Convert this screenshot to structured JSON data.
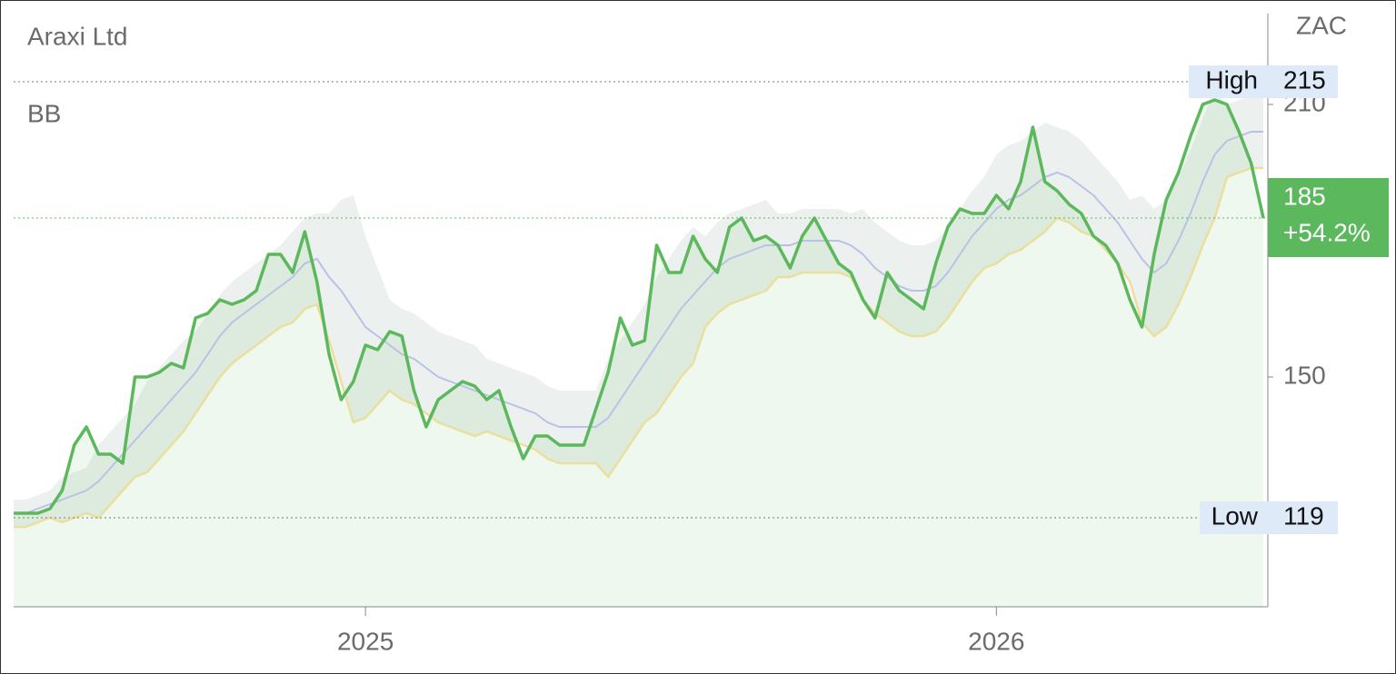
{
  "chart_data": {
    "type": "line",
    "title": "Araxi Ltd",
    "indicator": "BB",
    "currency": "ZAC",
    "categories": [
      null,
      null,
      null,
      null,
      null,
      null,
      null,
      null,
      null,
      null,
      null,
      null,
      null,
      null,
      null,
      null,
      null,
      null,
      null,
      null,
      null,
      null,
      null,
      null,
      null,
      null,
      null,
      null,
      null,
      "2025",
      null,
      null,
      null,
      null,
      null,
      null,
      null,
      null,
      null,
      null,
      null,
      null,
      null,
      null,
      null,
      null,
      null,
      null,
      null,
      null,
      null,
      null,
      null,
      null,
      null,
      null,
      null,
      null,
      null,
      null,
      null,
      null,
      null,
      null,
      null,
      null,
      null,
      null,
      null,
      null,
      null,
      null,
      null,
      null,
      null,
      null,
      null,
      null,
      null,
      null,
      null,
      "2026",
      null,
      null,
      null,
      null,
      null,
      null,
      null,
      null,
      null,
      null,
      null,
      null,
      null,
      null,
      null,
      null,
      null,
      null,
      null,
      null,
      null,
      null
    ],
    "price": {
      "color": "#5cb85c",
      "values": [
        120,
        120,
        120,
        121,
        125,
        135,
        139,
        133,
        133,
        131,
        150,
        150,
        151,
        153,
        152,
        163,
        164,
        167,
        166,
        167,
        169,
        177,
        177,
        173,
        182,
        171,
        155,
        145,
        149,
        157,
        156,
        160,
        159,
        147,
        139,
        145,
        147,
        149,
        148,
        145,
        147,
        139,
        132,
        137,
        137,
        135,
        135,
        135,
        143,
        151,
        163,
        157,
        158,
        179,
        173,
        173,
        181,
        176,
        173,
        183,
        185,
        180,
        181,
        179,
        174,
        181,
        185,
        180,
        175,
        173,
        167,
        163,
        173,
        169,
        167,
        165,
        175,
        183,
        187,
        186,
        186,
        190,
        187,
        193,
        205,
        193,
        191,
        188,
        186,
        181,
        179,
        175,
        167,
        161,
        177,
        189,
        195,
        203,
        210,
        211,
        210,
        204,
        197,
        185
      ]
    },
    "bands": {
      "upper_color": "#dde3e0",
      "middle_color": "#b9c2e6",
      "lower_color": "#eadf9c",
      "upper": [
        123,
        123,
        124,
        125,
        128,
        129,
        130,
        135,
        138,
        141,
        144,
        149,
        152,
        155,
        158,
        160,
        164,
        168,
        171,
        173,
        175,
        177,
        179,
        182,
        185,
        186,
        186,
        189,
        190,
        181,
        174,
        167,
        165,
        164,
        162,
        160,
        159,
        158,
        157,
        154,
        153,
        152,
        151,
        150,
        148,
        147,
        147,
        147,
        147,
        154,
        158,
        162,
        166,
        172,
        176,
        180,
        183,
        181,
        184,
        186,
        187,
        188,
        189,
        186,
        186,
        187,
        187,
        187,
        187,
        186,
        187,
        184,
        182,
        180,
        179,
        179,
        180,
        183,
        187,
        191,
        194,
        199,
        201,
        202,
        204,
        206,
        205,
        204,
        202,
        199,
        196,
        193,
        189,
        190,
        187,
        189,
        194,
        200,
        207,
        213,
        210,
        211,
        212,
        212
      ],
      "middle": [
        120,
        120,
        121,
        122,
        123,
        124,
        125,
        127,
        130,
        133,
        136,
        139,
        142,
        145,
        148,
        151,
        155,
        159,
        162,
        164,
        166,
        168,
        170,
        172,
        175,
        176,
        172,
        169,
        165,
        161,
        159,
        157,
        155,
        154,
        152,
        150,
        149,
        148,
        147,
        146,
        145,
        144,
        143,
        142,
        140,
        139,
        139,
        139,
        139,
        141,
        145,
        149,
        153,
        157,
        161,
        165,
        168,
        171,
        174,
        176,
        177,
        178,
        179,
        179,
        179,
        180,
        180,
        180,
        180,
        179,
        177,
        174,
        172,
        170,
        169,
        169,
        170,
        173,
        177,
        181,
        184,
        187,
        189,
        190,
        192,
        194,
        195,
        194,
        192,
        190,
        187,
        184,
        180,
        176,
        173,
        175,
        180,
        186,
        193,
        199,
        202,
        203,
        204,
        204
      ],
      "lower": [
        117,
        117,
        118,
        119,
        118,
        119,
        120,
        119,
        122,
        125,
        128,
        129,
        132,
        135,
        138,
        142,
        146,
        150,
        153,
        155,
        157,
        159,
        161,
        162,
        165,
        166,
        158,
        149,
        140,
        141,
        144,
        147,
        145,
        144,
        142,
        140,
        139,
        138,
        137,
        138,
        137,
        136,
        135,
        134,
        132,
        131,
        131,
        131,
        131,
        128,
        132,
        136,
        140,
        142,
        146,
        150,
        153,
        161,
        164,
        166,
        167,
        168,
        169,
        172,
        172,
        173,
        173,
        173,
        173,
        172,
        167,
        164,
        162,
        160,
        159,
        159,
        160,
        163,
        167,
        171,
        174,
        175,
        177,
        178,
        180,
        182,
        185,
        184,
        182,
        181,
        178,
        175,
        171,
        162,
        159,
        161,
        166,
        172,
        179,
        185,
        194,
        195,
        196,
        196
      ]
    },
    "high": {
      "label": "High",
      "value": 215
    },
    "low": {
      "label": "Low",
      "value": 119
    },
    "last": 185,
    "change": {
      "value": 54.2,
      "label": "+54.2%"
    },
    "ylim": [
      99.4,
      230
    ],
    "yticks": [
      150,
      210
    ],
    "grid": false
  }
}
